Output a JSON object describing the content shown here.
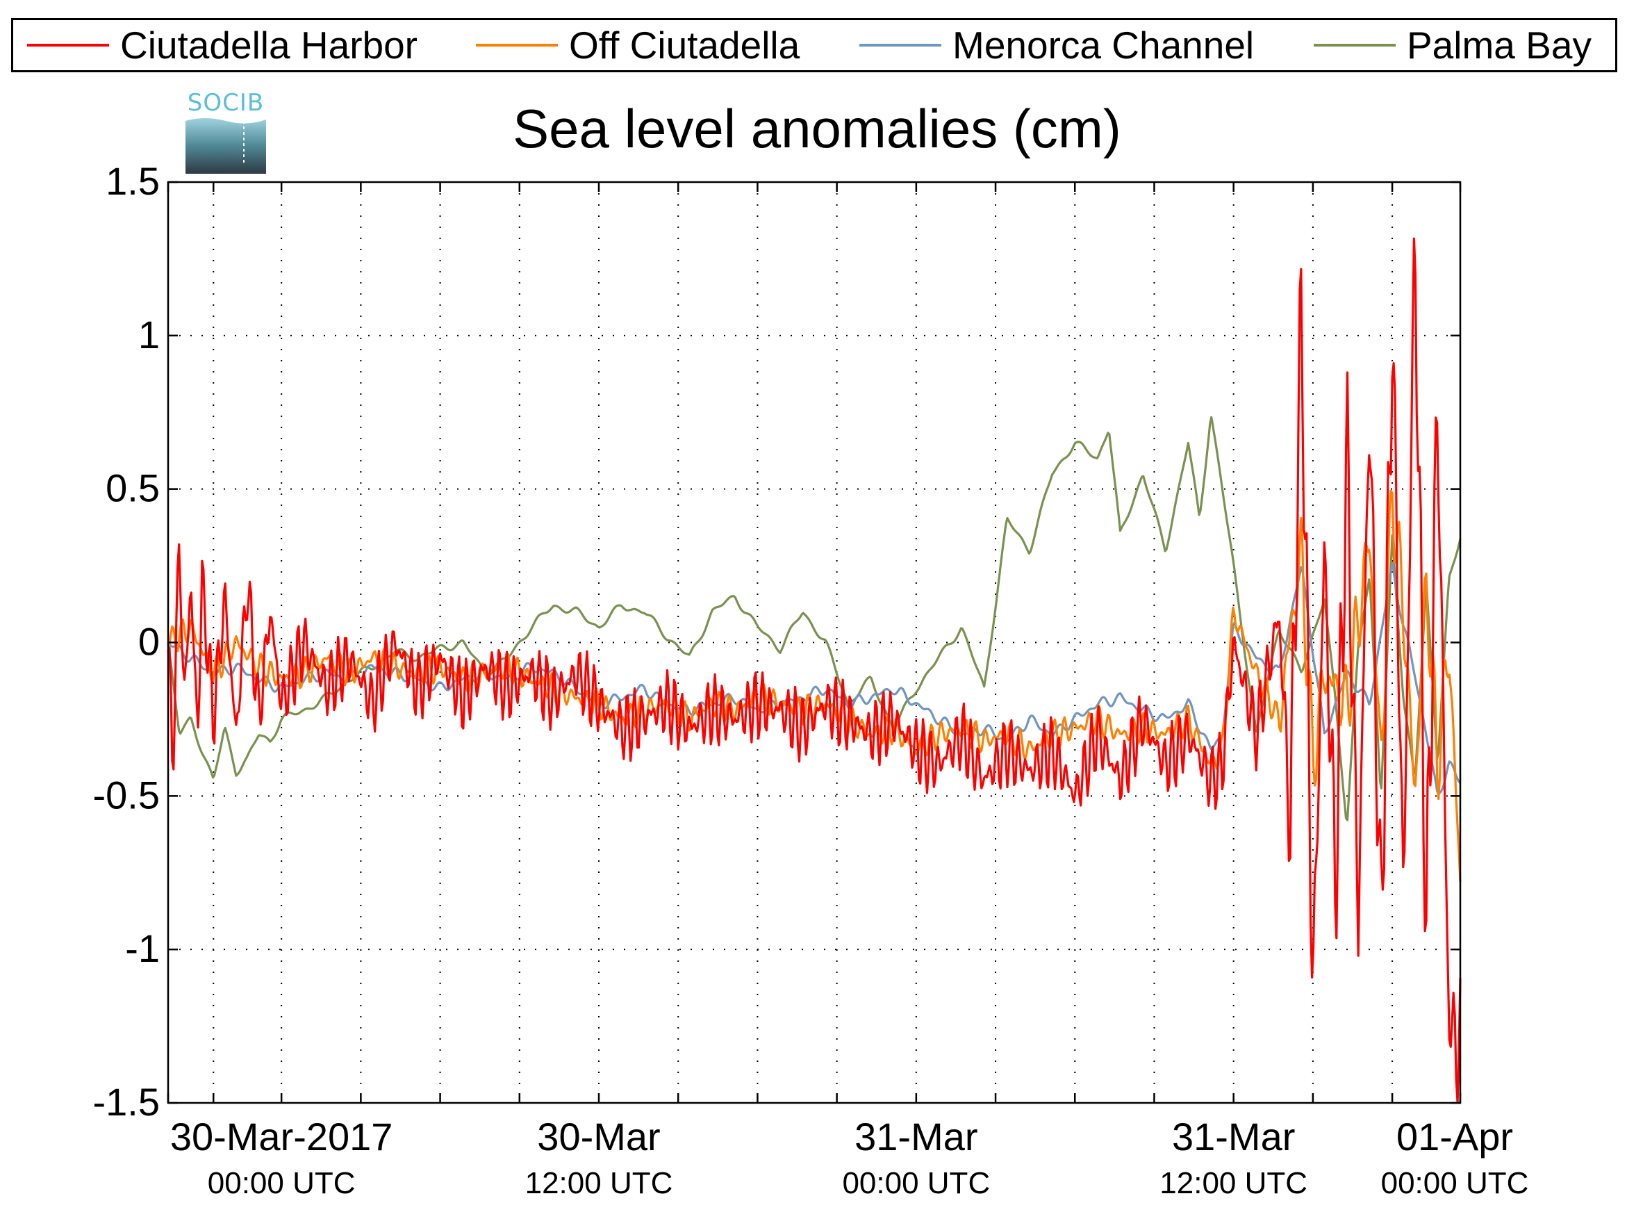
{
  "title": "Sea level anomalies (cm)",
  "logo": {
    "text": "SOCIB"
  },
  "legend": [
    {
      "name": "Ciutadella Harbor",
      "color": "#ff0000"
    },
    {
      "name": "Off Ciutadella",
      "color": "#ff8000"
    },
    {
      "name": "Menorca Channel",
      "color": "#6f96c0"
    },
    {
      "name": "Palma Bay",
      "color": "#7a9150"
    }
  ],
  "chart_data": {
    "type": "line",
    "title": "Sea level anomalies (cm)",
    "xlabel": "",
    "ylabel": "",
    "x_unit": "hours since 30-Mar-2017 00:00 UTC",
    "xlim": [
      -5,
      52
    ],
    "ylim": [
      -1.5,
      1.5
    ],
    "y_ticks": [
      1.5,
      1,
      0.5,
      0,
      -0.5,
      -1,
      -1.5
    ],
    "y_tick_labels": [
      "1.5",
      "1",
      "0.5",
      "0",
      "-0.5",
      "-1",
      "-1.5"
    ],
    "x_ticks_minor_hours": [
      -5,
      -3,
      0,
      3.5,
      7,
      10.5,
      14,
      17.5,
      21,
      24.5,
      28,
      31.5,
      35,
      38.5,
      42,
      45.5,
      49,
      52
    ],
    "x_tick_labels": [
      {
        "x": 0,
        "line1": "30-Mar-2017",
        "line2": "00:00 UTC"
      },
      {
        "x": 14,
        "line1": "30-Mar",
        "line2": "12:00 UTC"
      },
      {
        "x": 28,
        "line1": "31-Mar",
        "line2": "00:00 UTC"
      },
      {
        "x": 42,
        "line1": "31-Mar",
        "line2": "12:00 UTC"
      },
      {
        "x": 56,
        "line1": "01-Apr",
        "line2": "00:00 UTC"
      }
    ],
    "grid": true,
    "legend_position": "top",
    "series": [
      {
        "name": "Palma Bay",
        "color": "#7a9150",
        "x": [
          -5,
          -4.5,
          -4,
          -3.5,
          -3,
          -2.5,
          -2,
          -1.5,
          -1,
          -0.5,
          0,
          1,
          2,
          3,
          4,
          5,
          6,
          7,
          8,
          9,
          10,
          11,
          12,
          13,
          14,
          15,
          16,
          17,
          18,
          19,
          20,
          21,
          22,
          23,
          24,
          25,
          26,
          27,
          28,
          29,
          30,
          31,
          32,
          33,
          34,
          35,
          36,
          36.5,
          37,
          38,
          39,
          40,
          40.5,
          41,
          41.5,
          42,
          43,
          44,
          45,
          46,
          46.5,
          47,
          47.5,
          48,
          48.5,
          49,
          49.5,
          50,
          50.5,
          51,
          51.5,
          52
        ],
        "y": [
          0,
          -0.3,
          -0.25,
          -0.35,
          -0.45,
          -0.28,
          -0.42,
          -0.38,
          -0.3,
          -0.32,
          -0.25,
          -0.22,
          -0.18,
          -0.12,
          -0.08,
          -0.03,
          -0.05,
          -0.02,
          0.0,
          -0.1,
          -0.05,
          0.05,
          0.12,
          0.1,
          0.05,
          0.12,
          0.1,
          0.02,
          -0.05,
          0.1,
          0.15,
          0.05,
          -0.02,
          0.1,
          0.0,
          -0.2,
          -0.12,
          -0.28,
          -0.15,
          -0.05,
          0.05,
          -0.15,
          0.4,
          0.3,
          0.55,
          0.65,
          0.6,
          0.7,
          0.35,
          0.55,
          0.3,
          0.65,
          0.4,
          0.75,
          0.5,
          0.25,
          -0.3,
          0.05,
          -0.1,
          0.15,
          -0.2,
          -0.6,
          0.0,
          0.2,
          -0.5,
          0.35,
          -0.2,
          -0.45,
          0.2,
          -0.4,
          0.2,
          0.35
        ],
        "note_values": "approximate"
      },
      {
        "name": "Menorca Channel",
        "color": "#6f96c0",
        "x": [
          -5,
          -4,
          -3,
          -2,
          -1,
          0,
          1,
          2,
          3,
          4,
          5,
          6,
          7,
          8,
          9,
          10,
          11,
          12,
          13,
          14,
          15,
          16,
          17,
          18,
          19,
          20,
          21,
          22,
          23,
          24,
          25,
          26,
          27,
          28,
          29,
          30,
          31,
          32,
          33,
          34,
          35,
          36,
          37,
          38,
          39,
          40,
          41,
          41.5,
          42,
          43,
          44,
          45,
          46,
          47,
          48,
          49,
          49.5,
          50,
          50.5,
          51,
          51.5,
          52
        ],
        "y": [
          0,
          -0.05,
          -0.1,
          -0.08,
          -0.12,
          -0.15,
          -0.12,
          -0.1,
          -0.12,
          -0.08,
          -0.1,
          -0.12,
          -0.15,
          -0.12,
          -0.1,
          -0.12,
          -0.08,
          -0.1,
          -0.15,
          -0.2,
          -0.18,
          -0.15,
          -0.2,
          -0.22,
          -0.2,
          -0.18,
          -0.22,
          -0.2,
          -0.18,
          -0.15,
          -0.2,
          -0.18,
          -0.15,
          -0.2,
          -0.25,
          -0.3,
          -0.28,
          -0.32,
          -0.25,
          -0.3,
          -0.25,
          -0.2,
          -0.18,
          -0.22,
          -0.25,
          -0.2,
          -0.35,
          -0.3,
          0.05,
          -0.05,
          -0.1,
          0.25,
          -0.3,
          -0.1,
          -0.2,
          0.25,
          0.05,
          -0.1,
          -0.3,
          -0.5,
          -0.4,
          -0.45
        ],
        "note_values": "approximate"
      },
      {
        "name": "Off Ciutadella",
        "color": "#ff8000",
        "x": [
          -5,
          -4,
          -3,
          -2,
          -1,
          0,
          1,
          2,
          3,
          4,
          5,
          6,
          7,
          8,
          9,
          10,
          11,
          12,
          13,
          14,
          15,
          16,
          17,
          18,
          19,
          20,
          21,
          22,
          23,
          24,
          25,
          26,
          27,
          28,
          29,
          30,
          31,
          32,
          33,
          34,
          35,
          36,
          37,
          38,
          39,
          40,
          41,
          41.5,
          42,
          43,
          44,
          45,
          45.5,
          46,
          47,
          48,
          48.5,
          49,
          49.5,
          50,
          50.5,
          51,
          51.5,
          52
        ],
        "y": [
          0,
          0.05,
          -0.1,
          0.0,
          -0.08,
          -0.12,
          -0.1,
          -0.05,
          -0.1,
          -0.05,
          -0.08,
          -0.1,
          -0.08,
          -0.12,
          -0.1,
          -0.08,
          -0.12,
          -0.15,
          -0.18,
          -0.2,
          -0.25,
          -0.22,
          -0.2,
          -0.25,
          -0.2,
          -0.22,
          -0.18,
          -0.2,
          -0.22,
          -0.2,
          -0.25,
          -0.3,
          -0.28,
          -0.35,
          -0.3,
          -0.28,
          -0.32,
          -0.3,
          -0.35,
          -0.3,
          -0.28,
          -0.25,
          -0.3,
          -0.28,
          -0.3,
          -0.25,
          -0.4,
          -0.35,
          0.1,
          -0.1,
          -0.25,
          0.3,
          -0.4,
          -0.1,
          -0.2,
          0.35,
          -0.4,
          0.5,
          0.1,
          -0.5,
          0.2,
          -0.4,
          0.0,
          -0.8
        ],
        "note_values": "approximate"
      },
      {
        "name": "Ciutadella Harbor",
        "color": "#ff0000",
        "x": [
          -5,
          -4.8,
          -4.5,
          -4.3,
          -4,
          -3.7,
          -3.5,
          -3,
          -2.5,
          -2,
          -1.5,
          -1,
          -0.5,
          0,
          1,
          2,
          3,
          4,
          5,
          6,
          7,
          8,
          9,
          10,
          11,
          12,
          13,
          14,
          15,
          16,
          17,
          18,
          19,
          20,
          21,
          22,
          23,
          24,
          25,
          26,
          27,
          28,
          29,
          30,
          31,
          32,
          33,
          34,
          35,
          36,
          37,
          38,
          39,
          40,
          41,
          41.5,
          42,
          43,
          44,
          44.5,
          45,
          45.5,
          46,
          46.5,
          47,
          47.5,
          48,
          48.5,
          49,
          49.5,
          50,
          50.5,
          51,
          51.5,
          52
        ],
        "y": [
          0,
          -0.4,
          0.35,
          -0.2,
          0.2,
          -0.3,
          0.2,
          -0.25,
          0.15,
          -0.3,
          0.2,
          -0.25,
          0.1,
          -0.2,
          0.0,
          -0.15,
          -0.05,
          -0.2,
          0.0,
          -0.15,
          -0.05,
          -0.18,
          -0.08,
          -0.15,
          -0.1,
          -0.18,
          -0.1,
          -0.2,
          -0.28,
          -0.25,
          -0.2,
          -0.28,
          -0.22,
          -0.25,
          -0.2,
          -0.22,
          -0.28,
          -0.2,
          -0.25,
          -0.3,
          -0.25,
          -0.35,
          -0.4,
          -0.3,
          -0.45,
          -0.35,
          -0.42,
          -0.35,
          -0.5,
          -0.3,
          -0.45,
          -0.25,
          -0.4,
          -0.3,
          -0.45,
          -0.4,
          0.0,
          -0.3,
          0.1,
          -0.6,
          1.12,
          -1.15,
          0.3,
          -0.8,
          0.65,
          -0.9,
          0.8,
          -1.0,
          1.05,
          -0.85,
          1.34,
          -0.95,
          0.8,
          -1.25,
          -1.32
        ],
        "note_values": "approximate"
      }
    ]
  }
}
